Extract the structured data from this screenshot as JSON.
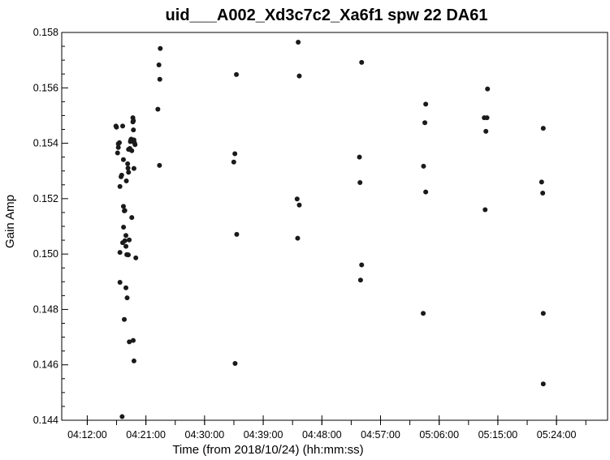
{
  "chart_data": {
    "type": "scatter",
    "title": "uid___A002_Xd3c7c2_Xa6f1 spw 22 DA61",
    "xlabel": "Time (from 2018/10/24) (hh:mm:ss)",
    "ylabel": "Gain Amp",
    "x_unit": "hh:mm:ss",
    "xlim": [
      "04:08:05",
      "05:31:50"
    ],
    "ylim": [
      0.144,
      0.158
    ],
    "x_ticks": [
      "04:12:00",
      "04:21:00",
      "04:30:00",
      "04:39:00",
      "04:48:00",
      "04:57:00",
      "05:06:00",
      "05:15:00",
      "05:24:00"
    ],
    "y_ticks": [
      "0.144",
      "0.146",
      "0.148",
      "0.150",
      "0.152",
      "0.154",
      "0.156",
      "0.158"
    ],
    "grid": false,
    "marker_color": "#1a1a1a",
    "series": [
      {
        "points": [
          [
            "04:16:24",
            0.15462
          ],
          [
            "04:16:29",
            0.15458
          ],
          [
            "04:16:46",
            0.15398
          ],
          [
            "04:16:46",
            0.15385
          ],
          [
            "04:16:39",
            0.15365
          ],
          [
            "04:16:56",
            0.15402
          ],
          [
            "04:17:01",
            0.15244
          ],
          [
            "04:17:11",
            0.15279
          ],
          [
            "04:17:17",
            0.15285
          ],
          [
            "04:17:26",
            0.15462
          ],
          [
            "04:17:33",
            0.15341
          ],
          [
            "04:17:33",
            0.15172
          ],
          [
            "04:17:41",
            0.15156
          ],
          [
            "04:17:46",
            0.15157
          ],
          [
            "04:17:34",
            0.15097
          ],
          [
            "04:17:26",
            0.15041
          ],
          [
            "04:17:46",
            0.15048
          ],
          [
            "04:17:01",
            0.15006
          ],
          [
            "04:17:56",
            0.15067
          ],
          [
            "04:17:56",
            0.15028
          ],
          [
            "04:18:00",
            0.15264
          ],
          [
            "04:18:12",
            0.15326
          ],
          [
            "04:18:15",
            0.1531
          ],
          [
            "04:18:20",
            0.15378
          ],
          [
            "04:18:20",
            0.15295
          ],
          [
            "04:18:04",
            0.14998
          ],
          [
            "04:18:18",
            0.14997
          ],
          [
            "04:18:26",
            0.15051
          ],
          [
            "04:17:01",
            0.14898
          ],
          [
            "04:17:56",
            0.14878
          ],
          [
            "04:18:07",
            0.14842
          ],
          [
            "04:17:41",
            0.14764
          ],
          [
            "04:18:27",
            0.14683
          ],
          [
            "04:19:03",
            0.14688
          ],
          [
            "04:19:10",
            0.14614
          ],
          [
            "04:17:21",
            0.14413
          ],
          [
            "04:18:32",
            0.15381
          ],
          [
            "04:18:37",
            0.15406
          ],
          [
            "04:18:41",
            0.15412
          ],
          [
            "04:18:45",
            0.15415
          ],
          [
            "04:18:50",
            0.15373
          ],
          [
            "04:18:50",
            0.15132
          ],
          [
            "04:19:00",
            0.15492
          ],
          [
            "04:19:05",
            0.15481
          ],
          [
            "04:19:00",
            0.15477
          ],
          [
            "04:19:05",
            0.15448
          ],
          [
            "04:19:10",
            0.15412
          ],
          [
            "04:19:15",
            0.15401
          ],
          [
            "04:19:20",
            0.15395
          ],
          [
            "04:19:10",
            0.15309
          ],
          [
            "04:19:27",
            0.14986
          ],
          [
            "04:22:50",
            0.15523
          ],
          [
            "04:23:00",
            0.15683
          ],
          [
            "04:23:08",
            0.15631
          ],
          [
            "04:23:12",
            0.15742
          ],
          [
            "04:23:05",
            0.1532
          ],
          [
            "04:34:29",
            0.15332
          ],
          [
            "04:34:39",
            0.15362
          ],
          [
            "04:34:53",
            0.15648
          ],
          [
            "04:34:56",
            0.15071
          ],
          [
            "04:34:41",
            0.14605
          ],
          [
            "04:44:12",
            0.15199
          ],
          [
            "04:44:32",
            0.15177
          ],
          [
            "04:44:22",
            0.15765
          ],
          [
            "04:44:32",
            0.15643
          ],
          [
            "04:44:17",
            0.15057
          ],
          [
            "04:53:46",
            0.1535
          ],
          [
            "04:53:51",
            0.15258
          ],
          [
            "04:54:06",
            0.15692
          ],
          [
            "04:54:06",
            0.14961
          ],
          [
            "04:53:56",
            0.14906
          ],
          [
            "05:03:36",
            0.15317
          ],
          [
            "05:03:48",
            0.15474
          ],
          [
            "05:03:56",
            0.15541
          ],
          [
            "05:03:56",
            0.15224
          ],
          [
            "05:03:33",
            0.14786
          ],
          [
            "05:12:55",
            0.15492
          ],
          [
            "05:13:20",
            0.15492
          ],
          [
            "05:13:10",
            0.15443
          ],
          [
            "05:13:25",
            0.15596
          ],
          [
            "05:13:03",
            0.1516
          ],
          [
            "05:21:43",
            0.1526
          ],
          [
            "05:21:53",
            0.1522
          ],
          [
            "05:21:58",
            0.15454
          ],
          [
            "05:21:58",
            0.14786
          ],
          [
            "05:21:58",
            0.14531
          ]
        ]
      }
    ]
  }
}
